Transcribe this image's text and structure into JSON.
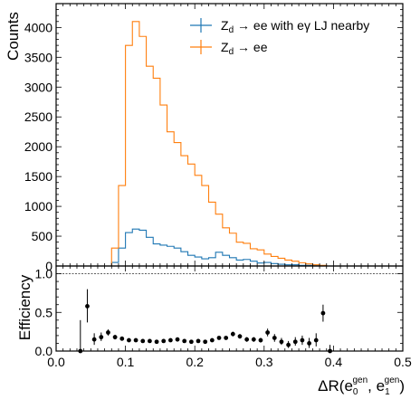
{
  "chart_data": [
    {
      "type": "line",
      "step": true,
      "ylabel": "Counts",
      "xlim": [
        0.0,
        0.5
      ],
      "ylim": [
        0,
        4400
      ],
      "yticks": [
        "0",
        "500",
        "1000",
        "1500",
        "2000",
        "2500",
        "3000",
        "3500",
        "4000"
      ],
      "bin_edges": [
        0.08,
        0.09,
        0.1,
        0.11,
        0.12,
        0.13,
        0.14,
        0.15,
        0.16,
        0.17,
        0.18,
        0.19,
        0.2,
        0.21,
        0.22,
        0.23,
        0.24,
        0.25,
        0.26,
        0.27,
        0.28,
        0.29,
        0.3,
        0.31,
        0.32,
        0.33,
        0.34,
        0.35,
        0.36,
        0.37,
        0.38,
        0.39,
        0.4
      ],
      "series": [
        {
          "name": "Z_d → ee with eγ LJ nearby",
          "color": "#1f77b4",
          "values": [
            60,
            300,
            560,
            620,
            600,
            480,
            370,
            350,
            330,
            300,
            240,
            180,
            150,
            120,
            140,
            230,
            180,
            140,
            100,
            110,
            80,
            50,
            60,
            40,
            30,
            20,
            20,
            10,
            10,
            5,
            5,
            0
          ]
        },
        {
          "name": "Z_d → ee",
          "color": "#ff7f0e",
          "values": [
            300,
            1350,
            3700,
            4100,
            3850,
            3350,
            3150,
            2700,
            2250,
            2070,
            1850,
            1710,
            1520,
            1350,
            1070,
            870,
            640,
            550,
            400,
            380,
            290,
            270,
            200,
            160,
            130,
            100,
            80,
            55,
            35,
            20,
            10,
            0
          ]
        }
      ],
      "legend": {
        "position": "top-right",
        "entries": [
          {
            "main": "Z",
            "sub": "d",
            "rest": " → ee with eγ LJ nearby",
            "color": "#1f77b4"
          },
          {
            "main": "Z",
            "sub": "d",
            "rest": " → ee",
            "color": "#ff7f0e"
          }
        ]
      }
    },
    {
      "type": "scatter",
      "ylabel": "Efficiency",
      "xlabel_main": "ΔR(e",
      "xlabel_sub0": "0",
      "xlabel_sup0": "gen",
      "xlabel_mid": ", e",
      "xlabel_sub1": "1",
      "xlabel_sup1": "gen",
      "xlabel_end": ")",
      "xlim": [
        0.0,
        0.5
      ],
      "ylim": [
        0.0,
        1.1
      ],
      "xticks": [
        "0.0",
        "0.1",
        "0.2",
        "0.3",
        "0.4",
        "0.5"
      ],
      "yticks": [
        "0.0",
        "0.5",
        "1.0"
      ],
      "reference_line_y": 1.0,
      "color": "#000000",
      "points": [
        {
          "x": 0.035,
          "y": 0.0,
          "lo": 0.0,
          "hi": 0.4
        },
        {
          "x": 0.045,
          "y": 0.58,
          "lo": 0.37,
          "hi": 0.8
        },
        {
          "x": 0.055,
          "y": 0.15,
          "lo": 0.08,
          "hi": 0.23
        },
        {
          "x": 0.065,
          "y": 0.18,
          "lo": 0.13,
          "hi": 0.24
        },
        {
          "x": 0.075,
          "y": 0.24,
          "lo": 0.2,
          "hi": 0.28
        },
        {
          "x": 0.085,
          "y": 0.18,
          "lo": 0.15,
          "hi": 0.21
        },
        {
          "x": 0.095,
          "y": 0.16,
          "lo": 0.14,
          "hi": 0.18
        },
        {
          "x": 0.105,
          "y": 0.14,
          "lo": 0.12,
          "hi": 0.16
        },
        {
          "x": 0.115,
          "y": 0.14,
          "lo": 0.13,
          "hi": 0.15
        },
        {
          "x": 0.125,
          "y": 0.13,
          "lo": 0.12,
          "hi": 0.14
        },
        {
          "x": 0.135,
          "y": 0.13,
          "lo": 0.12,
          "hi": 0.14
        },
        {
          "x": 0.145,
          "y": 0.12,
          "lo": 0.11,
          "hi": 0.13
        },
        {
          "x": 0.155,
          "y": 0.13,
          "lo": 0.12,
          "hi": 0.14
        },
        {
          "x": 0.165,
          "y": 0.14,
          "lo": 0.13,
          "hi": 0.15
        },
        {
          "x": 0.175,
          "y": 0.15,
          "lo": 0.14,
          "hi": 0.16
        },
        {
          "x": 0.185,
          "y": 0.13,
          "lo": 0.12,
          "hi": 0.14
        },
        {
          "x": 0.195,
          "y": 0.12,
          "lo": 0.11,
          "hi": 0.13
        },
        {
          "x": 0.205,
          "y": 0.13,
          "lo": 0.12,
          "hi": 0.14
        },
        {
          "x": 0.215,
          "y": 0.12,
          "lo": 0.11,
          "hi": 0.13
        },
        {
          "x": 0.225,
          "y": 0.14,
          "lo": 0.12,
          "hi": 0.16
        },
        {
          "x": 0.235,
          "y": 0.17,
          "lo": 0.15,
          "hi": 0.19
        },
        {
          "x": 0.245,
          "y": 0.17,
          "lo": 0.15,
          "hi": 0.19
        },
        {
          "x": 0.255,
          "y": 0.22,
          "lo": 0.19,
          "hi": 0.25
        },
        {
          "x": 0.265,
          "y": 0.19,
          "lo": 0.16,
          "hi": 0.22
        },
        {
          "x": 0.275,
          "y": 0.15,
          "lo": 0.12,
          "hi": 0.18
        },
        {
          "x": 0.285,
          "y": 0.15,
          "lo": 0.12,
          "hi": 0.18
        },
        {
          "x": 0.295,
          "y": 0.14,
          "lo": 0.11,
          "hi": 0.17
        },
        {
          "x": 0.305,
          "y": 0.24,
          "lo": 0.19,
          "hi": 0.29
        },
        {
          "x": 0.315,
          "y": 0.17,
          "lo": 0.12,
          "hi": 0.22
        },
        {
          "x": 0.325,
          "y": 0.12,
          "lo": 0.08,
          "hi": 0.17
        },
        {
          "x": 0.335,
          "y": 0.08,
          "lo": 0.04,
          "hi": 0.13
        },
        {
          "x": 0.345,
          "y": 0.12,
          "lo": 0.07,
          "hi": 0.18
        },
        {
          "x": 0.355,
          "y": 0.14,
          "lo": 0.08,
          "hi": 0.2
        },
        {
          "x": 0.365,
          "y": 0.1,
          "lo": 0.04,
          "hi": 0.17
        },
        {
          "x": 0.375,
          "y": 0.14,
          "lo": 0.06,
          "hi": 0.23
        },
        {
          "x": 0.385,
          "y": 0.49,
          "lo": 0.38,
          "hi": 0.6
        },
        {
          "x": 0.395,
          "y": 0.0,
          "lo": 0.0,
          "hi": 0.08
        }
      ]
    }
  ]
}
